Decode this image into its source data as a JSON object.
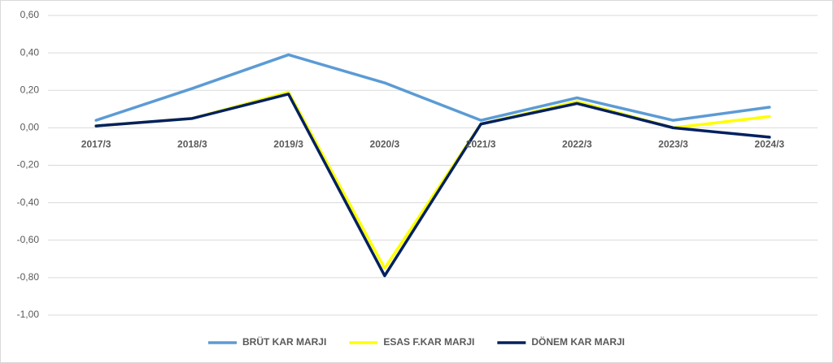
{
  "chart_data": {
    "type": "line",
    "categories": [
      "2017/3",
      "2018/3",
      "2019/3",
      "2020/3",
      "2021/3",
      "2022/3",
      "2023/3",
      "2024/3"
    ],
    "series": [
      {
        "name": "BRÜT KAR MARJI",
        "color": "#5b9bd5",
        "values": [
          0.04,
          0.21,
          0.39,
          0.24,
          0.04,
          0.16,
          0.04,
          0.11
        ]
      },
      {
        "name": "ESAS F.KAR MARJI",
        "color": "#ffff00",
        "values": [
          0.01,
          0.05,
          0.19,
          -0.75,
          0.02,
          0.14,
          0.0,
          0.06
        ]
      },
      {
        "name": "DÖNEM KAR MARJI",
        "color": "#002060",
        "values": [
          0.01,
          0.05,
          0.18,
          -0.79,
          0.02,
          0.13,
          0.0,
          -0.05
        ]
      }
    ],
    "ylim": [
      -1.0,
      0.6
    ],
    "yticks": [
      {
        "value": -1.0,
        "label": "-1,00"
      },
      {
        "value": -0.8,
        "label": "-0,80"
      },
      {
        "value": -0.6,
        "label": "-0,60"
      },
      {
        "value": -0.4,
        "label": "-0,40"
      },
      {
        "value": -0.2,
        "label": "-0,20"
      },
      {
        "value": 0.0,
        "label": "0,00"
      },
      {
        "value": 0.2,
        "label": "0,20"
      },
      {
        "value": 0.4,
        "label": "0,40"
      },
      {
        "value": 0.6,
        "label": "0,60"
      }
    ],
    "grid": true,
    "legend": "bottom"
  }
}
